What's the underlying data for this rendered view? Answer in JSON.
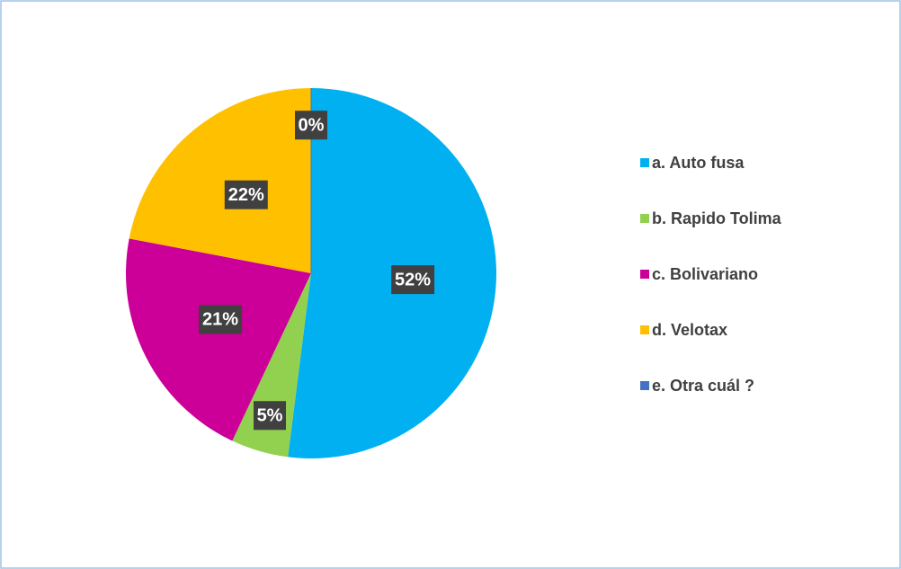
{
  "chart_data": {
    "type": "pie",
    "categories": [
      "a. Auto fusa",
      "b. Rapido Tolima",
      "c. Bolivariano",
      "d. Velotax",
      "e. Otra cuál ?"
    ],
    "values": [
      52,
      5,
      21,
      22,
      0
    ],
    "value_labels": [
      "52%",
      "5%",
      "21%",
      "22%",
      "0%"
    ],
    "colors": [
      "#00b0f0",
      "#92d050",
      "#cc0099",
      "#ffc000",
      "#4472c4"
    ],
    "legend": "right"
  }
}
